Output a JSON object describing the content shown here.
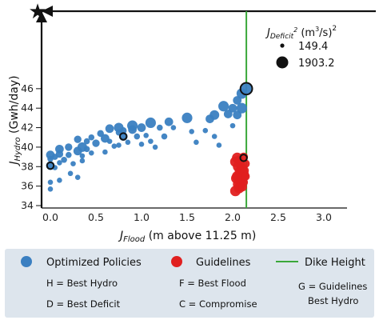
{
  "chart_data": {
    "type": "scatter",
    "xlabel_main": "J",
    "xlabel_sub": "Flood",
    "xlabel_unit": " (m above 11.25 m)",
    "ylabel_main": "J",
    "ylabel_sub": "Hydro",
    "ylabel_unit": " (Gwh/day)",
    "xlim": [
      -0.05,
      3.25
    ],
    "ylim": [
      34,
      46.5
    ],
    "xticks": [
      "0.0",
      "0.5",
      "1.0",
      "1.5",
      "2.0",
      "2.5",
      "3.0"
    ],
    "yticks": [
      "34",
      "36",
      "38",
      "40",
      "42",
      "44",
      "46"
    ],
    "xtick_values": [
      0,
      0.5,
      1.0,
      1.5,
      2.0,
      2.5,
      3.0
    ],
    "ytick_values": [
      34,
      36,
      38,
      40,
      42,
      44,
      46
    ],
    "dike_height_x": 2.15,
    "size_legend": {
      "title_main": "J",
      "title_sub": "Deficit",
      "title_sup": "2",
      "title_unit": " (m",
      "title_unit_sup": "3",
      "title_unit_tail": "/s)",
      "title_tail_sup": "2",
      "entries": [
        "149.4",
        "1903.2"
      ]
    },
    "colors": {
      "optimized": "#3a7fc1",
      "guidelines": "#e02020",
      "dike": "#3aa83a",
      "axis": "#111111",
      "legend_box": "#dde5ed"
    },
    "series": [
      {
        "name": "Optimized Policies",
        "points": [
          [
            0.0,
            39.2,
            40
          ],
          [
            0.0,
            38.8,
            20
          ],
          [
            0.0,
            38.1,
            40
          ],
          [
            0.0,
            36.4,
            15
          ],
          [
            0.0,
            35.7,
            15
          ],
          [
            0.05,
            37.9,
            15
          ],
          [
            0.05,
            39.0,
            20
          ],
          [
            0.1,
            39.8,
            40
          ],
          [
            0.1,
            39.3,
            30
          ],
          [
            0.1,
            38.4,
            15
          ],
          [
            0.1,
            36.6,
            15
          ],
          [
            0.15,
            38.7,
            20
          ],
          [
            0.2,
            40.0,
            30
          ],
          [
            0.2,
            39.2,
            20
          ],
          [
            0.22,
            37.3,
            15
          ],
          [
            0.25,
            38.3,
            15
          ],
          [
            0.3,
            40.8,
            30
          ],
          [
            0.3,
            39.6,
            40
          ],
          [
            0.3,
            36.9,
            15
          ],
          [
            0.35,
            40.0,
            50
          ],
          [
            0.35,
            39.1,
            15
          ],
          [
            0.35,
            38.6,
            15
          ],
          [
            0.4,
            40.6,
            20
          ],
          [
            0.4,
            39.8,
            20
          ],
          [
            0.45,
            41.0,
            20
          ],
          [
            0.45,
            39.4,
            15
          ],
          [
            0.5,
            40.4,
            30
          ],
          [
            0.55,
            41.4,
            25
          ],
          [
            0.6,
            40.9,
            40
          ],
          [
            0.6,
            39.5,
            15
          ],
          [
            0.65,
            41.9,
            40
          ],
          [
            0.65,
            40.6,
            15
          ],
          [
            0.7,
            40.1,
            15
          ],
          [
            0.75,
            42.0,
            50
          ],
          [
            0.75,
            41.5,
            20
          ],
          [
            0.75,
            40.2,
            15
          ],
          [
            0.8,
            41.7,
            25
          ],
          [
            0.8,
            41.1,
            40
          ],
          [
            0.85,
            40.5,
            15
          ],
          [
            0.9,
            42.2,
            60
          ],
          [
            0.9,
            41.8,
            40
          ],
          [
            0.95,
            41.1,
            20
          ],
          [
            1.0,
            42.0,
            40
          ],
          [
            1.0,
            40.3,
            15
          ],
          [
            1.05,
            41.2,
            15
          ],
          [
            1.1,
            42.5,
            60
          ],
          [
            1.1,
            40.6,
            15
          ],
          [
            1.15,
            40.0,
            15
          ],
          [
            1.2,
            42.0,
            20
          ],
          [
            1.25,
            41.1,
            20
          ],
          [
            1.3,
            42.6,
            40
          ],
          [
            1.35,
            42.0,
            15
          ],
          [
            1.5,
            43.0,
            60
          ],
          [
            1.55,
            41.6,
            15
          ],
          [
            1.6,
            40.5,
            15
          ],
          [
            1.7,
            41.7,
            15
          ],
          [
            1.75,
            42.9,
            40
          ],
          [
            1.8,
            43.3,
            50
          ],
          [
            1.8,
            41.1,
            15
          ],
          [
            1.85,
            40.2,
            15
          ],
          [
            1.9,
            44.2,
            60
          ],
          [
            1.95,
            43.4,
            40
          ],
          [
            2.0,
            44.0,
            40
          ],
          [
            2.0,
            42.2,
            15
          ],
          [
            2.05,
            44.8,
            40
          ],
          [
            2.05,
            43.3,
            40
          ],
          [
            2.1,
            44.0,
            60
          ],
          [
            2.1,
            45.5,
            60
          ],
          [
            2.15,
            46.0,
            80
          ]
        ]
      },
      {
        "name": "Guidelines",
        "points": [
          [
            2.03,
            38.5,
            60
          ],
          [
            2.06,
            38.0,
            60
          ],
          [
            2.08,
            37.5,
            60
          ],
          [
            2.05,
            37.0,
            60
          ],
          [
            2.09,
            36.6,
            60
          ],
          [
            2.06,
            36.2,
            60
          ],
          [
            2.07,
            35.8,
            60
          ],
          [
            2.1,
            37.8,
            60
          ],
          [
            2.12,
            37.2,
            60
          ],
          [
            2.05,
            38.9,
            60
          ],
          [
            2.11,
            36.9,
            60
          ],
          [
            2.08,
            36.0,
            60
          ],
          [
            2.03,
            35.5,
            60
          ],
          [
            2.13,
            37.6,
            40
          ],
          [
            2.09,
            38.2,
            40
          ],
          [
            2.12,
            36.4,
            40
          ],
          [
            2.11,
            35.9,
            40
          ],
          [
            2.04,
            36.8,
            60
          ],
          [
            2.07,
            38.7,
            40
          ],
          [
            2.12,
            39.0,
            40
          ],
          [
            2.14,
            37.0,
            40
          ],
          [
            2.14,
            38.3,
            40
          ]
        ]
      }
    ],
    "highlighted_points": [
      [
        2.15,
        46.0,
        "H"
      ],
      [
        0.8,
        41.1,
        "C"
      ],
      [
        0.0,
        38.1,
        "D"
      ],
      [
        2.12,
        38.9,
        "G"
      ]
    ],
    "legend": {
      "optimized_label": "Optimized Policies",
      "guidelines_label": "Guidelines",
      "dike_label": "Dike Height",
      "notes": [
        "H = Best Hydro",
        "F = Best Flood",
        "G = Guidelines",
        "Best Hydro",
        "D = Best Deficit",
        "C = Compromise"
      ]
    }
  }
}
